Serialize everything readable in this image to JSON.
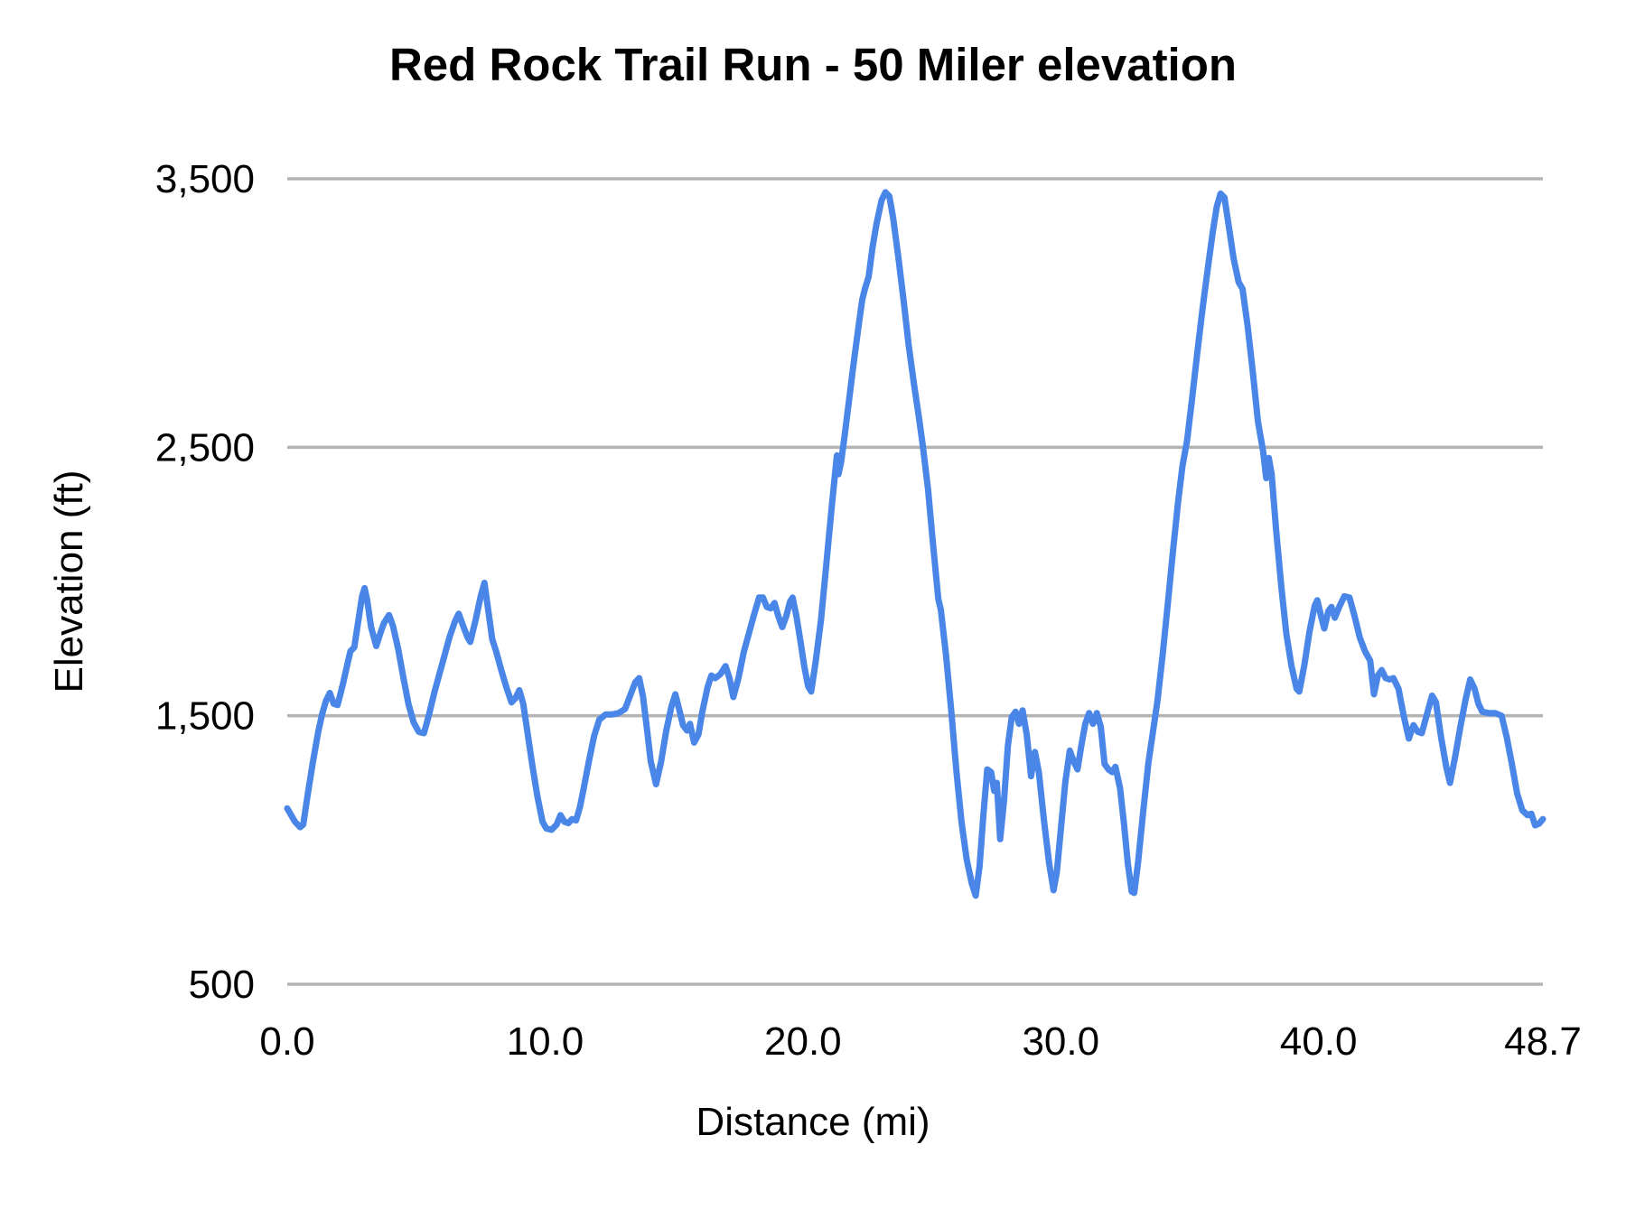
{
  "page": {
    "background": "#ffffff"
  },
  "chart": {
    "title": "Red Rock Trail Run - 50 Miler elevation",
    "x_axis_label": "Distance (mi)",
    "y_axis_label": "Elevation (ft)",
    "line_color": "#4a86e8",
    "gridline_color": "#b3b3b3",
    "text_color": "#000000"
  },
  "chart_data": {
    "type": "line",
    "title": "Red Rock Trail Run - 50 Miler elevation",
    "xlabel": "Distance (mi)",
    "ylabel": "Elevation (ft)",
    "xlim": [
      0,
      48.7
    ],
    "ylim": [
      500,
      3500
    ],
    "grid": "horizontal",
    "legend": false,
    "x_ticks": [
      {
        "value": 0,
        "label": "0.0"
      },
      {
        "value": 10,
        "label": "10.0"
      },
      {
        "value": 20,
        "label": "20.0"
      },
      {
        "value": 30,
        "label": "30.0"
      },
      {
        "value": 40,
        "label": "40.0"
      },
      {
        "value": 48.7,
        "label": "48.7"
      }
    ],
    "y_ticks": [
      {
        "value": 500,
        "label": "500"
      },
      {
        "value": 1500,
        "label": "1,500"
      },
      {
        "value": 2500,
        "label": "2,500"
      },
      {
        "value": 3500,
        "label": "3,500"
      }
    ],
    "series": [
      {
        "name": "Elevation (ft)",
        "color": "#4a86e8",
        "points": [
          [
            0,
            1155
          ],
          [
            0.15,
            1130
          ],
          [
            0.3,
            1105
          ],
          [
            0.5,
            1085
          ],
          [
            0.62,
            1095
          ],
          [
            0.8,
            1210
          ],
          [
            1,
            1330
          ],
          [
            1.2,
            1440
          ],
          [
            1.35,
            1505
          ],
          [
            1.5,
            1555
          ],
          [
            1.65,
            1585
          ],
          [
            1.8,
            1545
          ],
          [
            1.95,
            1540
          ],
          [
            2.15,
            1615
          ],
          [
            2.35,
            1700
          ],
          [
            2.45,
            1740
          ],
          [
            2.6,
            1755
          ],
          [
            2.75,
            1850
          ],
          [
            2.9,
            1945
          ],
          [
            3,
            1975
          ],
          [
            3.1,
            1930
          ],
          [
            3.25,
            1830
          ],
          [
            3.45,
            1760
          ],
          [
            3.6,
            1805
          ],
          [
            3.75,
            1845
          ],
          [
            3.95,
            1875
          ],
          [
            4.1,
            1835
          ],
          [
            4.3,
            1750
          ],
          [
            4.5,
            1645
          ],
          [
            4.7,
            1545
          ],
          [
            4.9,
            1475
          ],
          [
            5.1,
            1440
          ],
          [
            5.3,
            1435
          ],
          [
            5.5,
            1505
          ],
          [
            5.7,
            1585
          ],
          [
            5.9,
            1655
          ],
          [
            6.1,
            1725
          ],
          [
            6.3,
            1795
          ],
          [
            6.5,
            1850
          ],
          [
            6.65,
            1880
          ],
          [
            6.8,
            1840
          ],
          [
            7,
            1790
          ],
          [
            7.1,
            1775
          ],
          [
            7.3,
            1855
          ],
          [
            7.5,
            1945
          ],
          [
            7.65,
            1995
          ],
          [
            7.8,
            1890
          ],
          [
            7.95,
            1785
          ],
          [
            8.1,
            1740
          ],
          [
            8.3,
            1670
          ],
          [
            8.5,
            1605
          ],
          [
            8.7,
            1550
          ],
          [
            8.85,
            1565
          ],
          [
            9,
            1595
          ],
          [
            9.15,
            1545
          ],
          [
            9.3,
            1450
          ],
          [
            9.5,
            1320
          ],
          [
            9.7,
            1200
          ],
          [
            9.9,
            1105
          ],
          [
            10.05,
            1080
          ],
          [
            10.25,
            1075
          ],
          [
            10.45,
            1095
          ],
          [
            10.6,
            1130
          ],
          [
            10.75,
            1105
          ],
          [
            10.9,
            1100
          ],
          [
            11.05,
            1115
          ],
          [
            11.2,
            1110
          ],
          [
            11.35,
            1160
          ],
          [
            11.5,
            1230
          ],
          [
            11.7,
            1330
          ],
          [
            11.9,
            1425
          ],
          [
            12.1,
            1485
          ],
          [
            12.35,
            1505
          ],
          [
            12.6,
            1505
          ],
          [
            12.85,
            1510
          ],
          [
            13.1,
            1525
          ],
          [
            13.3,
            1575
          ],
          [
            13.5,
            1625
          ],
          [
            13.65,
            1640
          ],
          [
            13.8,
            1570
          ],
          [
            13.95,
            1450
          ],
          [
            14.1,
            1330
          ],
          [
            14.3,
            1245
          ],
          [
            14.5,
            1330
          ],
          [
            14.7,
            1445
          ],
          [
            14.9,
            1535
          ],
          [
            15.05,
            1580
          ],
          [
            15.2,
            1525
          ],
          [
            15.35,
            1465
          ],
          [
            15.5,
            1445
          ],
          [
            15.62,
            1470
          ],
          [
            15.78,
            1400
          ],
          [
            15.95,
            1430
          ],
          [
            16.1,
            1515
          ],
          [
            16.3,
            1605
          ],
          [
            16.45,
            1650
          ],
          [
            16.6,
            1640
          ],
          [
            16.8,
            1655
          ],
          [
            17,
            1685
          ],
          [
            17.15,
            1640
          ],
          [
            17.3,
            1570
          ],
          [
            17.5,
            1640
          ],
          [
            17.7,
            1735
          ],
          [
            17.9,
            1805
          ],
          [
            18.1,
            1875
          ],
          [
            18.3,
            1940
          ],
          [
            18.45,
            1940
          ],
          [
            18.6,
            1905
          ],
          [
            18.75,
            1900
          ],
          [
            18.9,
            1920
          ],
          [
            19.05,
            1870
          ],
          [
            19.2,
            1830
          ],
          [
            19.35,
            1870
          ],
          [
            19.5,
            1925
          ],
          [
            19.6,
            1940
          ],
          [
            19.75,
            1870
          ],
          [
            19.9,
            1780
          ],
          [
            20.05,
            1685
          ],
          [
            20.2,
            1610
          ],
          [
            20.32,
            1590
          ],
          [
            20.5,
            1705
          ],
          [
            20.7,
            1855
          ],
          [
            20.9,
            2055
          ],
          [
            21.1,
            2260
          ],
          [
            21.25,
            2405
          ],
          [
            21.32,
            2470
          ],
          [
            21.38,
            2400
          ],
          [
            21.48,
            2445
          ],
          [
            21.6,
            2530
          ],
          [
            21.75,
            2645
          ],
          [
            21.95,
            2800
          ],
          [
            22.15,
            2945
          ],
          [
            22.3,
            3050
          ],
          [
            22.42,
            3095
          ],
          [
            22.55,
            3135
          ],
          [
            22.7,
            3245
          ],
          [
            22.85,
            3330
          ],
          [
            23.05,
            3420
          ],
          [
            23.2,
            3450
          ],
          [
            23.35,
            3435
          ],
          [
            23.5,
            3355
          ],
          [
            23.7,
            3210
          ],
          [
            23.9,
            3050
          ],
          [
            24.1,
            2880
          ],
          [
            24.3,
            2740
          ],
          [
            24.5,
            2610
          ],
          [
            24.65,
            2505
          ],
          [
            24.85,
            2345
          ],
          [
            25.05,
            2135
          ],
          [
            25.25,
            1935
          ],
          [
            25.35,
            1895
          ],
          [
            25.55,
            1725
          ],
          [
            25.75,
            1520
          ],
          [
            25.95,
            1295
          ],
          [
            26.15,
            1105
          ],
          [
            26.35,
            965
          ],
          [
            26.55,
            875
          ],
          [
            26.7,
            830
          ],
          [
            26.85,
            940
          ],
          [
            27,
            1130
          ],
          [
            27.15,
            1300
          ],
          [
            27.3,
            1290
          ],
          [
            27.42,
            1220
          ],
          [
            27.52,
            1250
          ],
          [
            27.65,
            1040
          ],
          [
            27.8,
            1185
          ],
          [
            27.95,
            1390
          ],
          [
            28.1,
            1495
          ],
          [
            28.25,
            1515
          ],
          [
            28.38,
            1470
          ],
          [
            28.52,
            1520
          ],
          [
            28.68,
            1430
          ],
          [
            28.85,
            1275
          ],
          [
            29,
            1365
          ],
          [
            29.15,
            1290
          ],
          [
            29.35,
            1110
          ],
          [
            29.55,
            950
          ],
          [
            29.72,
            850
          ],
          [
            29.85,
            920
          ],
          [
            30,
            1075
          ],
          [
            30.18,
            1255
          ],
          [
            30.35,
            1370
          ],
          [
            30.5,
            1330
          ],
          [
            30.65,
            1300
          ],
          [
            30.8,
            1390
          ],
          [
            30.95,
            1470
          ],
          [
            31.1,
            1510
          ],
          [
            31.25,
            1470
          ],
          [
            31.4,
            1510
          ],
          [
            31.55,
            1460
          ],
          [
            31.7,
            1320
          ],
          [
            31.85,
            1300
          ],
          [
            32,
            1290
          ],
          [
            32.12,
            1310
          ],
          [
            32.3,
            1230
          ],
          [
            32.45,
            1100
          ],
          [
            32.6,
            950
          ],
          [
            32.75,
            845
          ],
          [
            32.85,
            840
          ],
          [
            33,
            955
          ],
          [
            33.2,
            1145
          ],
          [
            33.4,
            1325
          ],
          [
            33.6,
            1455
          ],
          [
            33.75,
            1555
          ],
          [
            33.95,
            1725
          ],
          [
            34.15,
            1915
          ],
          [
            34.35,
            2110
          ],
          [
            34.55,
            2295
          ],
          [
            34.72,
            2430
          ],
          [
            34.9,
            2525
          ],
          [
            35.1,
            2685
          ],
          [
            35.3,
            2855
          ],
          [
            35.5,
            3015
          ],
          [
            35.7,
            3165
          ],
          [
            35.9,
            3305
          ],
          [
            36.05,
            3395
          ],
          [
            36.2,
            3445
          ],
          [
            36.35,
            3430
          ],
          [
            36.5,
            3335
          ],
          [
            36.7,
            3205
          ],
          [
            36.9,
            3115
          ],
          [
            37.05,
            3090
          ],
          [
            37.25,
            2950
          ],
          [
            37.45,
            2780
          ],
          [
            37.65,
            2595
          ],
          [
            37.85,
            2485
          ],
          [
            37.97,
            2385
          ],
          [
            38.07,
            2460
          ],
          [
            38.18,
            2400
          ],
          [
            38.35,
            2195
          ],
          [
            38.55,
            1985
          ],
          [
            38.75,
            1805
          ],
          [
            38.95,
            1685
          ],
          [
            39.15,
            1600
          ],
          [
            39.25,
            1590
          ],
          [
            39.45,
            1690
          ],
          [
            39.65,
            1815
          ],
          [
            39.85,
            1910
          ],
          [
            39.95,
            1930
          ],
          [
            40.1,
            1870
          ],
          [
            40.22,
            1825
          ],
          [
            40.38,
            1890
          ],
          [
            40.5,
            1905
          ],
          [
            40.63,
            1865
          ],
          [
            40.8,
            1905
          ],
          [
            41,
            1945
          ],
          [
            41.2,
            1940
          ],
          [
            41.4,
            1870
          ],
          [
            41.6,
            1790
          ],
          [
            41.8,
            1740
          ],
          [
            42,
            1705
          ],
          [
            42.15,
            1580
          ],
          [
            42.3,
            1650
          ],
          [
            42.45,
            1670
          ],
          [
            42.6,
            1640
          ],
          [
            42.75,
            1635
          ],
          [
            42.9,
            1640
          ],
          [
            43.1,
            1600
          ],
          [
            43.3,
            1500
          ],
          [
            43.5,
            1415
          ],
          [
            43.68,
            1465
          ],
          [
            43.85,
            1440
          ],
          [
            44,
            1435
          ],
          [
            44.2,
            1505
          ],
          [
            44.4,
            1575
          ],
          [
            44.55,
            1550
          ],
          [
            44.75,
            1420
          ],
          [
            44.95,
            1310
          ],
          [
            45.1,
            1250
          ],
          [
            45.3,
            1350
          ],
          [
            45.5,
            1460
          ],
          [
            45.7,
            1560
          ],
          [
            45.88,
            1635
          ],
          [
            46.05,
            1600
          ],
          [
            46.2,
            1545
          ],
          [
            46.35,
            1515
          ],
          [
            46.6,
            1510
          ],
          [
            46.85,
            1510
          ],
          [
            47.1,
            1500
          ],
          [
            47.3,
            1420
          ],
          [
            47.5,
            1320
          ],
          [
            47.7,
            1210
          ],
          [
            47.9,
            1148
          ],
          [
            48.1,
            1130
          ],
          [
            48.25,
            1135
          ],
          [
            48.4,
            1092
          ],
          [
            48.55,
            1098
          ],
          [
            48.7,
            1115
          ]
        ]
      }
    ]
  }
}
